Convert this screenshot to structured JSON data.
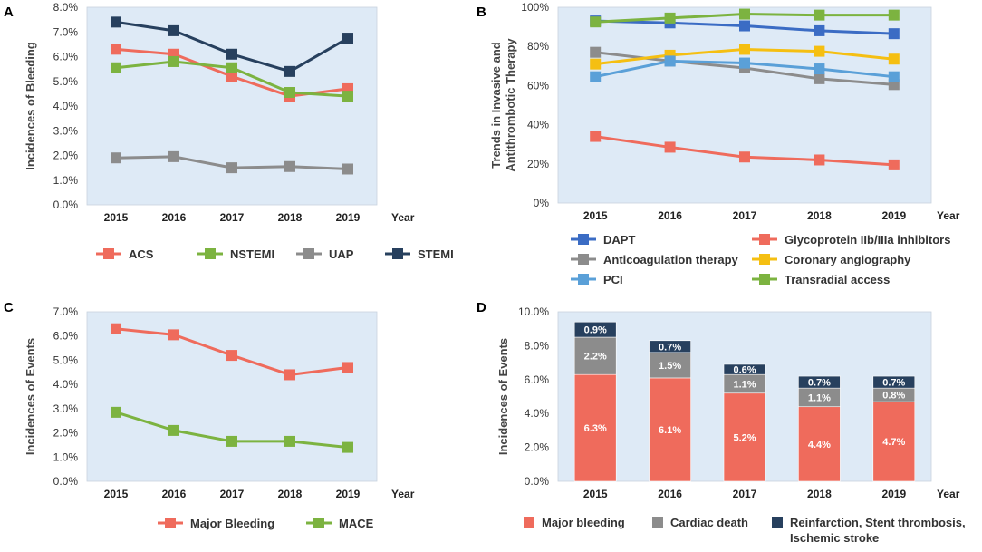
{
  "chart_data": [
    {
      "panel": "A",
      "type": "line",
      "ylabel": "Incidences of Bleeding",
      "xlabel": "Year",
      "categories": [
        "2015",
        "2016",
        "2017",
        "2018",
        "2019"
      ],
      "ylim": [
        0,
        8
      ],
      "yticks": [
        "0.0%",
        "1.0%",
        "2.0%",
        "3.0%",
        "4.0%",
        "5.0%",
        "6.0%",
        "7.0%",
        "8.0%"
      ],
      "series": [
        {
          "name": "ACS",
          "color": "#ef6b5c",
          "values": [
            6.3,
            6.1,
            5.2,
            4.4,
            4.7
          ]
        },
        {
          "name": "NSTEMI",
          "color": "#7cb340",
          "values": [
            5.55,
            5.8,
            5.55,
            4.55,
            4.4
          ]
        },
        {
          "name": "UAP",
          "color": "#8c8c8c",
          "values": [
            1.9,
            1.95,
            1.5,
            1.55,
            1.45
          ]
        },
        {
          "name": "STEMI",
          "color": "#27405e",
          "values": [
            7.4,
            7.05,
            6.1,
            5.4,
            6.75
          ]
        }
      ]
    },
    {
      "panel": "B",
      "type": "line",
      "ylabel": "Trends in Invasive and Antithrombotic Therapy",
      "ylabel_lines": [
        "Trends in Invasive and",
        "Antithrombotic Therapy"
      ],
      "xlabel": "Year",
      "categories": [
        "2015",
        "2016",
        "2017",
        "2018",
        "2019"
      ],
      "ylim": [
        0,
        100
      ],
      "yticks": [
        "0%",
        "20%",
        "40%",
        "60%",
        "80%",
        "100%"
      ],
      "series": [
        {
          "name": "DAPT",
          "color": "#3b6cc4",
          "values": [
            93,
            92,
            90.5,
            88,
            86.5
          ]
        },
        {
          "name": "Glycoprotein IIb/IIIa inhibitors",
          "color": "#ef6b5c",
          "values": [
            34,
            28.5,
            23.5,
            22,
            19.5
          ]
        },
        {
          "name": "Anticoagulation therapy",
          "color": "#8c8c8c",
          "values": [
            77,
            72.5,
            69,
            63.5,
            60.5
          ]
        },
        {
          "name": "Coronary angiography",
          "color": "#f5bf12",
          "values": [
            71,
            75.5,
            78.5,
            77.5,
            73.5
          ]
        },
        {
          "name": "PCI",
          "color": "#5aa0d8",
          "values": [
            64.5,
            72.5,
            71.5,
            68.5,
            64.5
          ]
        },
        {
          "name": "Transradial access",
          "color": "#7cb340",
          "values": [
            92.5,
            94.5,
            96.5,
            96,
            96
          ]
        }
      ]
    },
    {
      "panel": "C",
      "type": "line",
      "ylabel": "Incidences of Events",
      "xlabel": "Year",
      "categories": [
        "2015",
        "2016",
        "2017",
        "2018",
        "2019"
      ],
      "ylim": [
        0,
        7
      ],
      "yticks": [
        "0.0%",
        "1.0%",
        "2.0%",
        "3.0%",
        "4.0%",
        "5.0%",
        "6.0%",
        "7.0%"
      ],
      "series": [
        {
          "name": "Major Bleeding",
          "color": "#ef6b5c",
          "values": [
            6.3,
            6.05,
            5.2,
            4.4,
            4.7
          ]
        },
        {
          "name": "MACE",
          "color": "#7cb340",
          "values": [
            2.85,
            2.1,
            1.65,
            1.65,
            1.4
          ]
        }
      ]
    },
    {
      "panel": "D",
      "type": "bar",
      "stacked": true,
      "ylabel": "Incidences of Events",
      "xlabel": "Year",
      "categories": [
        "2015",
        "2016",
        "2017",
        "2018",
        "2019"
      ],
      "ylim": [
        0,
        10
      ],
      "yticks": [
        "0.0%",
        "2.0%",
        "4.0%",
        "6.0%",
        "8.0%",
        "10.0%"
      ],
      "series": [
        {
          "name": "Major bleeding",
          "color": "#ef6b5c",
          "values": [
            6.3,
            6.1,
            5.2,
            4.4,
            4.7
          ],
          "labels": [
            "6.3%",
            "6.1%",
            "5.2%",
            "4.4%",
            "4.7%"
          ]
        },
        {
          "name": "Cardiac death",
          "color": "#8c8c8c",
          "values": [
            2.2,
            1.5,
            1.1,
            1.1,
            0.8
          ],
          "labels": [
            "2.2%",
            "1.5%",
            "1.1%",
            "1.1%",
            "0.8%"
          ]
        },
        {
          "name": "Reinfarction, Stent thrombosis, Ischemic stroke",
          "name_lines": [
            "Reinfarction, Stent thrombosis,",
            "Ischemic stroke"
          ],
          "color": "#27405e",
          "values": [
            0.9,
            0.7,
            0.6,
            0.7,
            0.7
          ],
          "labels": [
            "0.9%",
            "0.7%",
            "0.6%",
            "0.7%",
            "0.7%"
          ]
        }
      ]
    }
  ],
  "panel_letters": [
    "A",
    "B",
    "C",
    "D"
  ],
  "plot_background": "#deeaf6"
}
